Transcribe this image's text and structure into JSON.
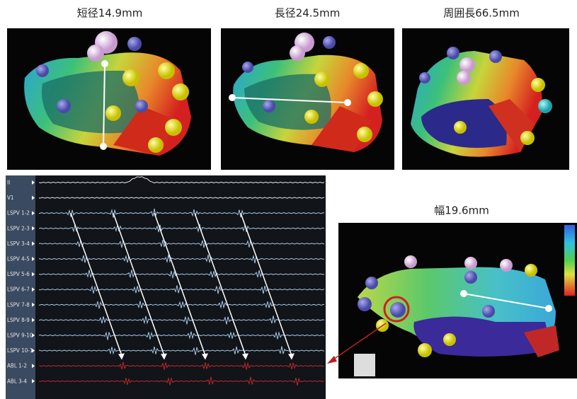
{
  "panels": [
    {
      "title": "短径14.9mm"
    },
    {
      "title": "長径24.5mm"
    },
    {
      "title": "周囲長66.5mm"
    },
    {
      "title": "幅19.6mm"
    }
  ],
  "ecg": {
    "channels": [
      {
        "label": "II",
        "color": "#e8e8e8"
      },
      {
        "label": "V1",
        "color": "#e8e8e8"
      },
      {
        "label": "LSPV 1-2",
        "color": "#a9c8e6"
      },
      {
        "label": "LSPV 2-3",
        "color": "#a9c8e6"
      },
      {
        "label": "LSPV 3-4",
        "color": "#a9c8e6"
      },
      {
        "label": "LSPV 4-5",
        "color": "#a9c8e6"
      },
      {
        "label": "LSPV 5-6",
        "color": "#a9c8e6"
      },
      {
        "label": "LSPV 6-7",
        "color": "#a9c8e6"
      },
      {
        "label": "LSPV 7-8",
        "color": "#a9c8e6"
      },
      {
        "label": "LSPV 8-9",
        "color": "#a9c8e6"
      },
      {
        "label": "LSPV 9-10",
        "color": "#a9c8e6"
      },
      {
        "label": "LSPV 10-1",
        "color": "#a9c8e6"
      },
      {
        "label": "ABL 1-2",
        "color": "#c0282a"
      },
      {
        "label": "ABL 3-4",
        "color": "#c0282a"
      }
    ]
  }
}
